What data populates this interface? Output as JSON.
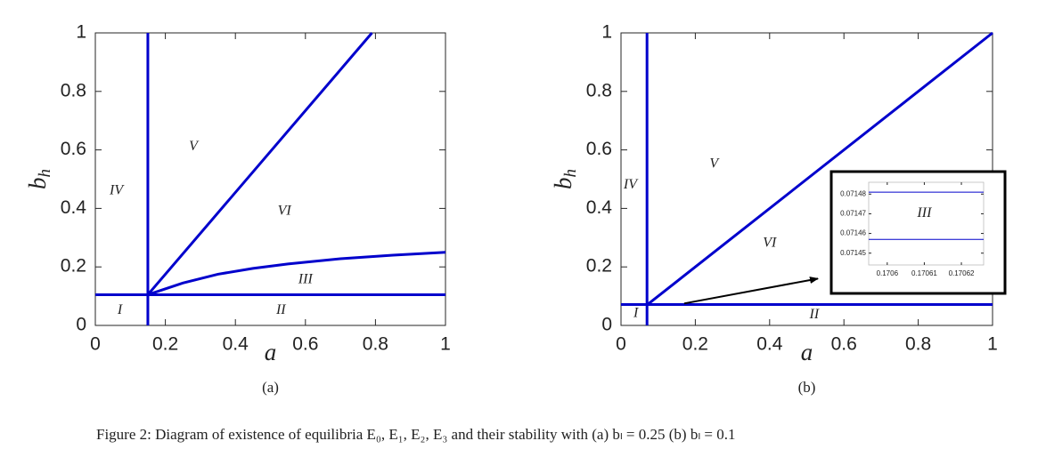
{
  "chart_data": [
    {
      "type": "line",
      "xlabel": "a",
      "ylabel": {
        "base": "b",
        "sub": "h"
      },
      "panel": "(a)",
      "xlim": [
        0,
        1
      ],
      "ylim": [
        0,
        1
      ],
      "xticks": [
        0,
        0.2,
        0.4,
        0.6,
        0.8,
        1
      ],
      "yticks": [
        0,
        0.2,
        0.4,
        0.6,
        0.8,
        1
      ],
      "series": [
        {
          "color": "#0000cc",
          "x": [
            0.15,
            0.15
          ],
          "values": [
            0,
            1
          ]
        },
        {
          "color": "#0000cc",
          "x": [
            0,
            1
          ],
          "values": [
            0.105,
            0.105
          ]
        },
        {
          "color": "#0000cc",
          "x": [
            0.15,
            0.79
          ],
          "values": [
            0.105,
            1
          ]
        },
        {
          "color": "#0000cc",
          "x": [
            0.15,
            0.25,
            0.35,
            0.45,
            0.55,
            0.7,
            0.85,
            1
          ],
          "values": [
            0.105,
            0.145,
            0.175,
            0.195,
            0.21,
            0.228,
            0.24,
            0.25
          ]
        }
      ],
      "annotations": [
        {
          "text": "I",
          "x": 0.07,
          "y": 0.05
        },
        {
          "text": "II",
          "x": 0.53,
          "y": 0.05
        },
        {
          "text": "III",
          "x": 0.6,
          "y": 0.155
        },
        {
          "text": "IV",
          "x": 0.06,
          "y": 0.46
        },
        {
          "text": "V",
          "x": 0.28,
          "y": 0.61
        },
        {
          "text": "VI",
          "x": 0.54,
          "y": 0.39
        }
      ]
    },
    {
      "type": "line",
      "xlabel": "a",
      "ylabel": {
        "base": "b",
        "sub": "h"
      },
      "panel": "(b)",
      "xlim": [
        0,
        1
      ],
      "ylim": [
        0,
        1
      ],
      "xticks": [
        0,
        0.2,
        0.4,
        0.6,
        0.8,
        1
      ],
      "yticks": [
        0,
        0.2,
        0.4,
        0.6,
        0.8,
        1
      ],
      "series": [
        {
          "color": "#0000cc",
          "x": [
            0.07,
            0.07
          ],
          "values": [
            0,
            1
          ]
        },
        {
          "color": "#0000cc",
          "x": [
            0,
            1
          ],
          "values": [
            0.0715,
            0.0715
          ]
        },
        {
          "color": "#0000cc",
          "x": [
            0.07,
            1
          ],
          "values": [
            0.07,
            1
          ]
        }
      ],
      "annotations": [
        {
          "text": "I",
          "x": 0.04,
          "y": 0.04
        },
        {
          "text": "II",
          "x": 0.52,
          "y": 0.035
        },
        {
          "text": "IV",
          "x": 0.025,
          "y": 0.48
        },
        {
          "text": "V",
          "x": 0.25,
          "y": 0.55
        },
        {
          "text": "VI",
          "x": 0.4,
          "y": 0.28
        }
      ],
      "arrow": {
        "from": [
          0.17,
          0.075
        ],
        "to": [
          0.53,
          0.16
        ]
      },
      "inset": {
        "type": "line",
        "xlim": [
          0.170595,
          0.170626
        ],
        "ylim": [
          0.071444,
          0.071486
        ],
        "xticks": [
          0.1706,
          0.17061,
          0.17062
        ],
        "yticks": [
          0.07145,
          0.07146,
          0.07147,
          0.07148
        ],
        "series": [
          {
            "color": "#0000cc",
            "x": [
              0.170595,
              0.170626
            ],
            "values": [
              0.071481,
              0.071481
            ]
          },
          {
            "color": "#0000cc",
            "x": [
              0.170595,
              0.170626
            ],
            "values": [
              0.071457,
              0.071457
            ]
          }
        ],
        "annotations": [
          {
            "text": "III",
            "x": 0.17061,
            "y": 0.07147
          }
        ]
      }
    }
  ],
  "caption": "Figure 2: Diagram of existence of equilibria E₀, E₁, E₂, E₃ and their stability with (a) bₗ = 0.25 (b) bₗ = 0.1"
}
